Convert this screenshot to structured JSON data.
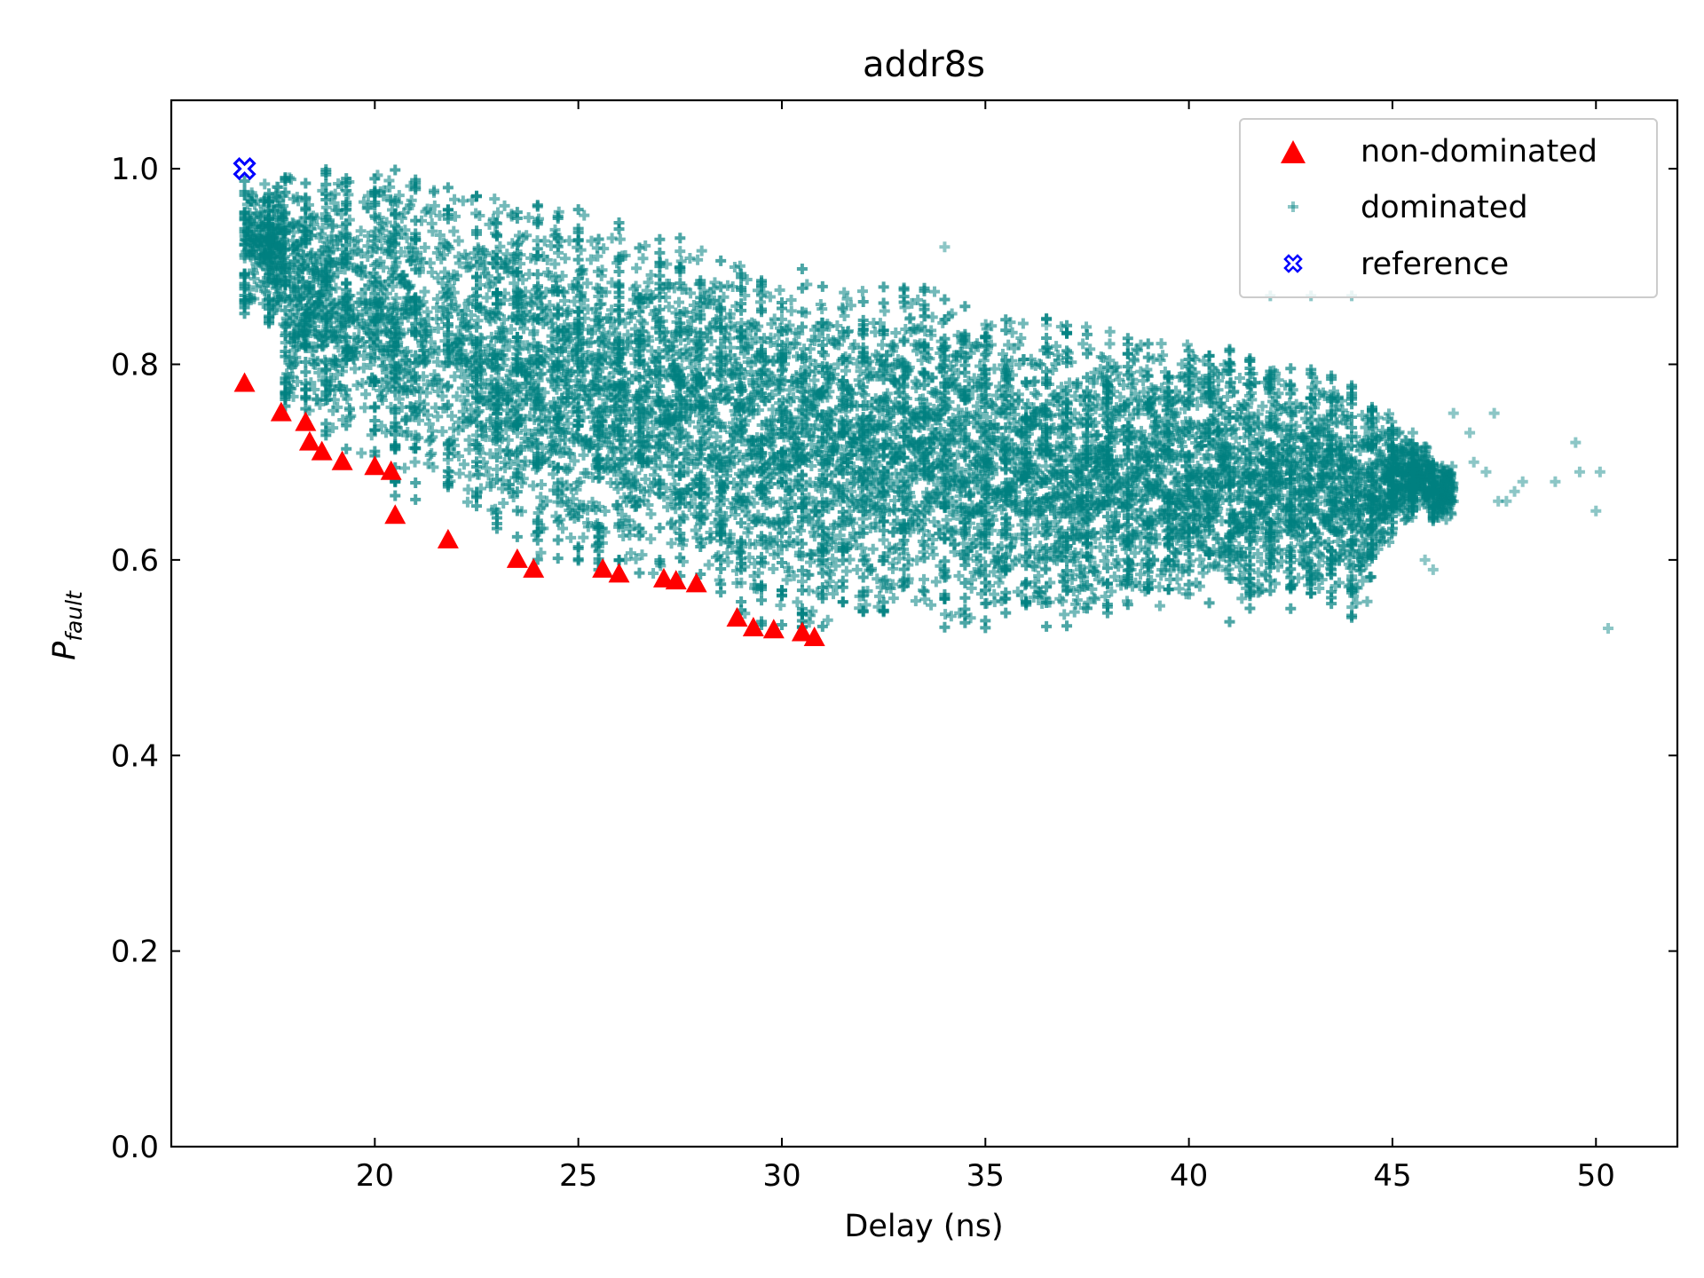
{
  "chart_data": {
    "type": "scatter",
    "title": "addr8s",
    "xlabel": "Delay (ns)",
    "ylabel": {
      "main": "P",
      "sub": "fault"
    },
    "xlim": [
      15.0,
      52.0
    ],
    "ylim": [
      0.0,
      1.07
    ],
    "x_ticks": [
      20,
      25,
      30,
      35,
      40,
      45,
      50
    ],
    "y_ticks": [
      0.0,
      0.2,
      0.4,
      0.6,
      0.8,
      1.0
    ],
    "x_tick_labels": [
      "20",
      "25",
      "30",
      "35",
      "40",
      "45",
      "50"
    ],
    "y_tick_labels": [
      "0.0",
      "0.2",
      "0.4",
      "0.6",
      "0.8",
      "1.0"
    ],
    "grid": false,
    "legend_position": "top-right",
    "legend": [
      {
        "label": "non-dominated",
        "marker": "triangle-up",
        "color": "#ff0000"
      },
      {
        "label": "dominated",
        "marker": "plus",
        "color": "#008080"
      },
      {
        "label": "reference",
        "marker": "x-filled",
        "color": "#0000ff"
      }
    ],
    "series": [
      {
        "name": "non-dominated",
        "color": "#ff0000",
        "marker": "triangle-up",
        "points": [
          [
            16.8,
            0.78
          ],
          [
            17.7,
            0.75
          ],
          [
            18.3,
            0.74
          ],
          [
            18.4,
            0.72
          ],
          [
            18.7,
            0.71
          ],
          [
            19.2,
            0.7
          ],
          [
            20.0,
            0.695
          ],
          [
            20.4,
            0.69
          ],
          [
            20.5,
            0.645
          ],
          [
            21.8,
            0.62
          ],
          [
            23.5,
            0.6
          ],
          [
            23.9,
            0.59
          ],
          [
            25.6,
            0.59
          ],
          [
            26.0,
            0.585
          ],
          [
            27.1,
            0.58
          ],
          [
            27.4,
            0.578
          ],
          [
            27.9,
            0.575
          ],
          [
            28.9,
            0.54
          ],
          [
            29.3,
            0.53
          ],
          [
            29.8,
            0.528
          ],
          [
            30.5,
            0.525
          ],
          [
            30.8,
            0.52
          ]
        ]
      },
      {
        "name": "dominated",
        "color": "#008080",
        "marker": "plus",
        "columns": [
          [
            16.8,
            0.85,
            1.0
          ],
          [
            17.4,
            0.84,
            0.99
          ],
          [
            17.8,
            0.75,
            1.0
          ],
          [
            18.3,
            0.74,
            0.99
          ],
          [
            18.8,
            0.72,
            1.0
          ],
          [
            19.3,
            0.7,
            1.0
          ],
          [
            20.0,
            0.7,
            1.0
          ],
          [
            20.5,
            0.66,
            1.0
          ],
          [
            21.0,
            0.66,
            0.99
          ],
          [
            21.8,
            0.64,
            0.99
          ],
          [
            22.5,
            0.64,
            0.98
          ],
          [
            23.0,
            0.62,
            0.98
          ],
          [
            23.5,
            0.61,
            0.97
          ],
          [
            24.0,
            0.6,
            0.97
          ],
          [
            24.5,
            0.6,
            0.96
          ],
          [
            25.0,
            0.59,
            0.96
          ],
          [
            25.5,
            0.59,
            0.95
          ],
          [
            26.0,
            0.58,
            0.95
          ],
          [
            26.5,
            0.58,
            0.94
          ],
          [
            27.0,
            0.58,
            0.93
          ],
          [
            27.5,
            0.58,
            0.93
          ],
          [
            28.0,
            0.57,
            0.92
          ],
          [
            28.5,
            0.56,
            0.92
          ],
          [
            29.0,
            0.54,
            0.91
          ],
          [
            29.5,
            0.53,
            0.91
          ],
          [
            30.0,
            0.53,
            0.9
          ],
          [
            30.5,
            0.53,
            0.9
          ],
          [
            31.0,
            0.52,
            0.89
          ],
          [
            31.5,
            0.54,
            0.89
          ],
          [
            32.0,
            0.54,
            0.88
          ],
          [
            32.5,
            0.54,
            0.88
          ],
          [
            33.0,
            0.55,
            0.88
          ],
          [
            33.5,
            0.55,
            0.89
          ],
          [
            34.0,
            0.53,
            0.87
          ],
          [
            34.5,
            0.53,
            0.86
          ],
          [
            35.0,
            0.53,
            0.86
          ],
          [
            35.5,
            0.54,
            0.85
          ],
          [
            36.0,
            0.54,
            0.85
          ],
          [
            36.5,
            0.53,
            0.85
          ],
          [
            37.0,
            0.53,
            0.84
          ],
          [
            37.5,
            0.54,
            0.84
          ],
          [
            38.0,
            0.54,
            0.84
          ],
          [
            38.5,
            0.55,
            0.83
          ],
          [
            39.0,
            0.55,
            0.83
          ],
          [
            39.5,
            0.56,
            0.83
          ],
          [
            40.0,
            0.55,
            0.82
          ],
          [
            40.5,
            0.55,
            0.82
          ],
          [
            41.0,
            0.53,
            0.82
          ],
          [
            41.5,
            0.55,
            0.81
          ],
          [
            42.0,
            0.56,
            0.81
          ],
          [
            42.5,
            0.55,
            0.8
          ],
          [
            43.0,
            0.56,
            0.8
          ],
          [
            43.5,
            0.55,
            0.79
          ],
          [
            44.0,
            0.54,
            0.78
          ],
          [
            44.5,
            0.6,
            0.76
          ],
          [
            45.0,
            0.63,
            0.74
          ],
          [
            45.5,
            0.65,
            0.72
          ],
          [
            46.0,
            0.64,
            0.7
          ]
        ],
        "outliers": [
          [
            46.2,
            0.66
          ],
          [
            46.5,
            0.75
          ],
          [
            47.0,
            0.7
          ],
          [
            47.3,
            0.69
          ],
          [
            47.5,
            0.75
          ],
          [
            47.8,
            0.66
          ],
          [
            48.0,
            0.67
          ],
          [
            48.2,
            0.68
          ],
          [
            49.0,
            0.68
          ],
          [
            49.5,
            0.72
          ],
          [
            49.6,
            0.69
          ],
          [
            50.0,
            0.65
          ],
          [
            50.1,
            0.69
          ],
          [
            50.3,
            0.53
          ],
          [
            46.9,
            0.73
          ],
          [
            47.6,
            0.66
          ],
          [
            45.8,
            0.6
          ],
          [
            46.0,
            0.59
          ],
          [
            42.0,
            0.87
          ],
          [
            43.0,
            0.87
          ],
          [
            44.0,
            0.87
          ],
          [
            34.0,
            0.92
          ],
          [
            36.5,
            0.84
          ]
        ]
      },
      {
        "name": "reference",
        "color": "#0000ff",
        "marker": "x-filled",
        "points": [
          [
            16.8,
            1.0
          ]
        ]
      }
    ]
  }
}
